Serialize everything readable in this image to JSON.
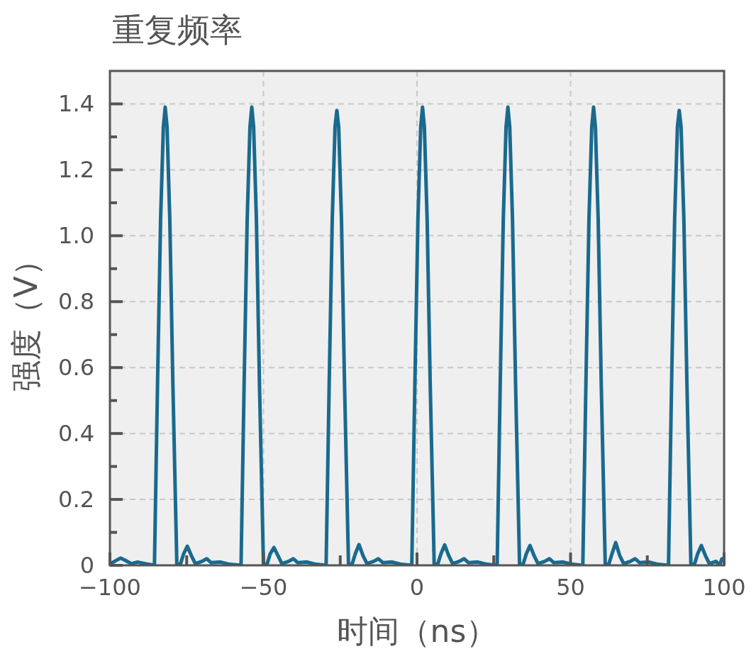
{
  "chart_data": {
    "type": "line",
    "title": "重复频率",
    "xlabel": "时间（ns）",
    "ylabel": "强度（V）",
    "xlim": [
      -100,
      100
    ],
    "ylim": [
      0,
      1.5
    ],
    "xticks": [
      -100,
      {
        "value": -75,
        "label": null
      },
      -50,
      {
        "value": -25,
        "label": null
      },
      0,
      {
        "value": 25,
        "label": null
      },
      50,
      {
        "value": 75,
        "label": null
      },
      100
    ],
    "yticks": [
      0,
      {
        "value": 0.1,
        "label": null
      },
      0.2,
      {
        "value": 0.3,
        "label": null
      },
      0.4,
      {
        "value": 0.5,
        "label": null
      },
      0.6,
      {
        "value": 0.7,
        "label": null
      },
      0.8,
      {
        "value": 0.9,
        "label": null
      },
      {
        "value": 1,
        "label": "1.0"
      },
      {
        "value": 1.1,
        "label": null
      },
      1.2,
      {
        "value": 1.3,
        "label": null
      },
      1.4
    ],
    "grid": true,
    "marker": "none",
    "line_style": "solid",
    "series": [
      {
        "color": "#1a6a8e",
        "x": [
          -100,
          -98.5,
          -96.5,
          -95,
          -93,
          -91,
          -88.5,
          -85.5,
          -84.5,
          -83.5,
          -82.6,
          -82.0,
          -81.4,
          -80.5,
          -79.5,
          -78.2,
          -77.0,
          -76.0,
          -74.8,
          -73.5,
          -72.2,
          -70.0,
          -68.5,
          -67.0,
          -64.0,
          -61.0,
          -57.3,
          -56.3,
          -55.3,
          -54.4,
          -53.8,
          -53.2,
          -52.3,
          -51.3,
          -50.0,
          -48.8,
          -47.8,
          -46.6,
          -45.3,
          -44.0,
          -41.8,
          -40.3,
          -38.8,
          -35.8,
          -32.8,
          -29.6,
          -28.6,
          -27.6,
          -26.7,
          -26.1,
          -25.5,
          -24.6,
          -23.6,
          -22.3,
          -21.1,
          -20.1,
          -18.9,
          -17.6,
          -16.3,
          -14.1,
          -12.6,
          -11.1,
          -8.1,
          -5.1,
          -1.7,
          -0.7,
          0.3,
          1.2,
          1.8,
          2.4,
          3.3,
          4.3,
          5.6,
          6.8,
          7.8,
          9.0,
          10.3,
          11.6,
          13.8,
          15.3,
          16.8,
          19.8,
          22.8,
          26.1,
          27.1,
          28.1,
          29.0,
          29.6,
          30.2,
          31.1,
          32.1,
          33.4,
          34.6,
          35.6,
          36.8,
          38.1,
          39.4,
          41.6,
          43.1,
          44.6,
          47.6,
          50.6,
          54.0,
          55.0,
          56.0,
          56.9,
          57.5,
          58.1,
          59.0,
          60.0,
          61.3,
          62.5,
          63.5,
          64.7,
          66.0,
          67.3,
          69.5,
          71.0,
          72.5,
          75.5,
          78.5,
          81.9,
          82.9,
          83.9,
          84.8,
          85.4,
          86.0,
          86.9,
          87.9,
          89.2,
          90.4,
          91.4,
          92.6,
          93.9,
          95.2,
          97.4,
          98.5,
          99.3,
          100
        ],
        "values": [
          0.005,
          0.012,
          0.022,
          0.015,
          0.005,
          0.01,
          0.005,
          0,
          0.55,
          1.05,
          1.33,
          1.39,
          1.33,
          1.05,
          0.55,
          0,
          0.005,
          0.035,
          0.058,
          0.03,
          0.005,
          0.012,
          0.02,
          0.008,
          0.01,
          0.003,
          0,
          0.55,
          1.05,
          1.33,
          1.39,
          1.33,
          1.05,
          0.55,
          0,
          0.005,
          0.035,
          0.054,
          0.03,
          0.005,
          0.012,
          0.02,
          0.008,
          0.01,
          0.003,
          0,
          0.55,
          1.05,
          1.33,
          1.38,
          1.33,
          1.05,
          0.55,
          0,
          0.005,
          0.035,
          0.063,
          0.03,
          0.005,
          0.012,
          0.02,
          0.008,
          0.01,
          0.003,
          0,
          0.55,
          1.05,
          1.33,
          1.39,
          1.33,
          1.05,
          0.55,
          0,
          0.005,
          0.035,
          0.062,
          0.03,
          0.005,
          0.012,
          0.02,
          0.008,
          0.01,
          0.003,
          0,
          0.55,
          1.05,
          1.33,
          1.39,
          1.33,
          1.05,
          0.55,
          0,
          0.005,
          0.035,
          0.06,
          0.03,
          0.005,
          0.012,
          0.02,
          0.008,
          0.01,
          0.003,
          0,
          0.55,
          1.05,
          1.33,
          1.39,
          1.33,
          1.05,
          0.55,
          0,
          0.005,
          0.035,
          0.069,
          0.03,
          0.005,
          0.012,
          0.02,
          0.008,
          0.01,
          0.003,
          0,
          0.55,
          1.05,
          1.33,
          1.38,
          1.33,
          1.05,
          0.55,
          0,
          0.005,
          0.035,
          0.06,
          0.03,
          0.005,
          0.012,
          0,
          0.02,
          0.02
        ]
      }
    ]
  }
}
